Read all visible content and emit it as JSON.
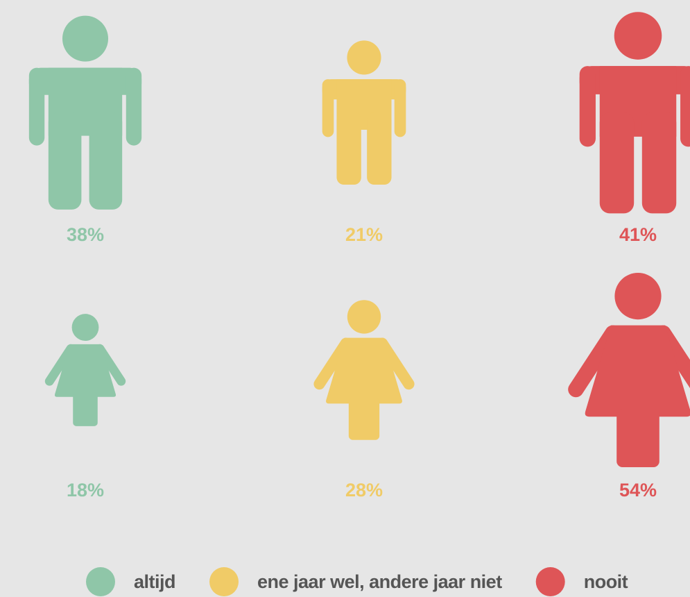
{
  "chart_data": {
    "type": "pictograph",
    "categories": [
      "altijd",
      "ene jaar wel, andere jaar niet",
      "nooit"
    ],
    "colors": [
      "#8fc6a8",
      "#f0cb67",
      "#de5557"
    ],
    "series": [
      {
        "icon": "male",
        "values": [
          38,
          21,
          41
        ],
        "value_labels": [
          "38%",
          "21%",
          "41%"
        ]
      },
      {
        "icon": "female",
        "values": [
          18,
          28,
          54
        ],
        "value_labels": [
          "18%",
          "28%",
          "54%"
        ]
      }
    ],
    "legend": "bottom"
  }
}
